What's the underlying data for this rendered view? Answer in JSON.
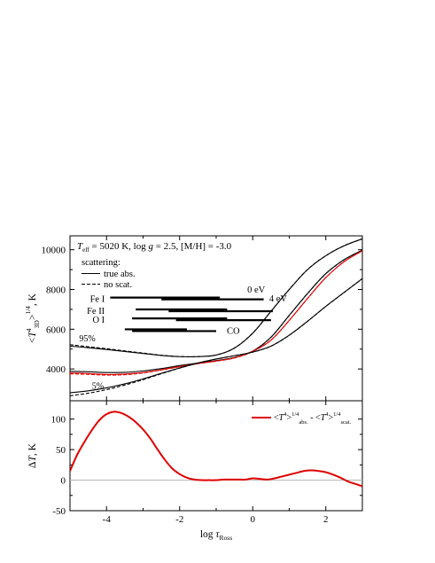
{
  "chart_data": [
    {
      "type": "line",
      "annotation": {
        "teff_prefix": "T",
        "teff_sub": "eff",
        "teff_rest": " = 5020 K, log ",
        "logg_var": "g",
        "logg_rest": " = 2.5, [M/H] = -3.0"
      },
      "ylabel": {
        "open": "<",
        "var": "T",
        "sup": "4",
        "sub": "3D",
        "close": ">",
        "power": "1/4",
        "unit": ", K"
      },
      "xlim": [
        -5,
        3
      ],
      "ylim": [
        2400,
        10700
      ],
      "yticks": [
        4000,
        6000,
        8000,
        10000
      ],
      "ytick_labels": [
        "4000",
        "6000",
        "8000",
        "10000"
      ],
      "xticks": [
        -4,
        -2,
        0,
        2
      ],
      "legend": {
        "title": "scattering:",
        "entries": [
          {
            "label": "true abs.",
            "style": "solid"
          },
          {
            "label": "no scat.",
            "style": "dashed"
          }
        ]
      },
      "percentile_labels": [
        {
          "text": "95%",
          "x": -4.75,
          "y": 5380
        },
        {
          "text": "5%",
          "x": -4.4,
          "y": 3000
        }
      ],
      "series": [
        {
          "name": "95%",
          "kind": "percentile",
          "style": "solid",
          "color": "#000000",
          "x": [
            -5,
            -4.5,
            -4,
            -3.5,
            -3,
            -2.5,
            -2,
            -1.5,
            -1,
            -0.5,
            0,
            0.5,
            1,
            1.5,
            2,
            2.5,
            3
          ],
          "y": [
            5150,
            5070,
            4980,
            4880,
            4780,
            4680,
            4620,
            4620,
            4700,
            5050,
            5800,
            6900,
            8000,
            9000,
            9700,
            10200,
            10550
          ]
        },
        {
          "name": "95%",
          "kind": "percentile",
          "style": "dashed",
          "color": "#000000",
          "x": [
            -5,
            -4.5,
            -4,
            -3.5,
            -3,
            -2.5,
            -2,
            -1.5,
            -1,
            -0.5,
            0,
            0.5,
            1,
            1.5,
            2,
            2.5,
            3
          ],
          "y": [
            5220,
            5120,
            5020,
            4910,
            4800,
            4690,
            4625,
            4620,
            4705,
            5055,
            5805,
            6905,
            8005,
            9005,
            9700,
            10200,
            10550
          ]
        },
        {
          "name": "mean",
          "kind": "mean",
          "style": "solid",
          "color": "#000000",
          "x": [
            -5,
            -4.5,
            -4,
            -3.5,
            -3,
            -2.5,
            -2,
            -1.5,
            -1,
            -0.5,
            0,
            0.5,
            1,
            1.5,
            2,
            2.5,
            3
          ],
          "y": [
            3880,
            3860,
            3820,
            3830,
            3900,
            4020,
            4170,
            4300,
            4420,
            4580,
            4900,
            5600,
            6700,
            7800,
            8800,
            9500,
            9980
          ]
        },
        {
          "name": "mean",
          "kind": "mean",
          "style": "dashed",
          "color": "#000000",
          "x": [
            -5,
            -4.5,
            -4,
            -3.5,
            -3,
            -2.5,
            -2,
            -1.5,
            -1,
            -0.5,
            0,
            0.5,
            1,
            1.5,
            2,
            2.5,
            3
          ],
          "y": [
            3780,
            3740,
            3710,
            3730,
            3810,
            3950,
            4120,
            4270,
            4400,
            4560,
            4890,
            5595,
            6695,
            7795,
            8795,
            9495,
            9975
          ]
        },
        {
          "name": "mean",
          "kind": "mean",
          "style": "solid",
          "color": "#e00000",
          "x": [
            -5,
            -4.5,
            -4,
            -3.5,
            -3,
            -2.5,
            -2,
            -1.5,
            -1,
            -0.5,
            0,
            0.5,
            1,
            1.5,
            2,
            2.5,
            3
          ],
          "y": [
            3800,
            3770,
            3720,
            3740,
            3820,
            3960,
            4120,
            4270,
            4400,
            4560,
            4890,
            5450,
            6450,
            7550,
            8600,
            9400,
            9950
          ]
        },
        {
          "name": "mean",
          "kind": "mean",
          "style": "dashed",
          "color": "#e00000",
          "x": [
            -5,
            -4.5,
            -4,
            -3.5,
            -3,
            -2.5,
            -2,
            -1.5,
            -1,
            -0.5,
            0,
            0.5,
            1,
            1.5,
            2,
            2.5,
            3
          ],
          "y": [
            3760,
            3730,
            3690,
            3710,
            3800,
            3950,
            4110,
            4265,
            4395,
            4555,
            4885,
            5445,
            6445,
            7545,
            8595,
            9395,
            9945
          ]
        },
        {
          "name": "5%",
          "kind": "percentile",
          "style": "solid",
          "color": "#000000",
          "x": [
            -5,
            -4.5,
            -4,
            -3.5,
            -3,
            -2.5,
            -2,
            -1.5,
            -1,
            -0.5,
            0,
            0.5,
            1,
            1.5,
            2,
            2.5,
            3
          ],
          "y": [
            2800,
            2900,
            3050,
            3250,
            3500,
            3780,
            4050,
            4300,
            4500,
            4670,
            4850,
            5150,
            5700,
            6400,
            7150,
            7850,
            8550
          ]
        },
        {
          "name": "5%",
          "kind": "percentile",
          "style": "dashed",
          "color": "#000000",
          "x": [
            -5,
            -4.5,
            -4,
            -3.5,
            -3,
            -2.5,
            -2,
            -1.5,
            -1,
            -0.5,
            0,
            0.5,
            1,
            1.5,
            2,
            2.5,
            3
          ],
          "y": [
            2650,
            2780,
            2960,
            3190,
            3460,
            3760,
            4040,
            4295,
            4498,
            4668,
            4848,
            5148,
            5698,
            6398,
            7148,
            7848,
            8548
          ]
        }
      ],
      "formation_ranges": [
        {
          "label": "Fe I",
          "y": 7550,
          "bars": [
            [
              -3.9,
              -0.9
            ],
            [
              -2.5,
              0.3
            ]
          ]
        },
        {
          "label": "Fe II",
          "y": 6950,
          "bars": [
            [
              -3.2,
              -0.7
            ],
            [
              -2.3,
              0.55
            ]
          ]
        },
        {
          "label": "O I",
          "y": 6500,
          "bars": [
            [
              -3.3,
              -0.7
            ],
            [
              -2.1,
              0.5
            ]
          ]
        },
        {
          "label": "CO",
          "y": 5950,
          "bars": [
            [
              -3.5,
              -1.8
            ],
            [
              -3.3,
              -1.0
            ]
          ]
        }
      ],
      "bar_annotations": [
        {
          "text": "0 eV",
          "x": -0.15,
          "y": 7850
        },
        {
          "text": "4 eV",
          "x": 0.45,
          "y": 7400
        }
      ]
    },
    {
      "type": "line",
      "xlabel": {
        "main": "log ",
        "var": "τ",
        "sub": "Ross"
      },
      "ylabel": {
        "delta": "Δ",
        "var": "T",
        "unit": ", K"
      },
      "xlim": [
        -5,
        3
      ],
      "ylim": [
        -50,
        130
      ],
      "yticks": [
        -50,
        0,
        50,
        100
      ],
      "ytick_labels": [
        "-50",
        "0",
        "50",
        "100"
      ],
      "xticks": [
        -4,
        -2,
        0,
        2
      ],
      "xtick_labels": [
        "-4",
        "-2",
        "0",
        "2"
      ],
      "zero_line": true,
      "legend": {
        "entries": [
          {
            "open": "<",
            "var": "T",
            "sup": "4",
            "close": ">",
            "power": "1/4",
            "sub": "abs.",
            "minus": " - <",
            "var2": "T",
            "sup2": "4",
            "close2": ">",
            "power2": "1/4",
            "sub2": "scat."
          }
        ]
      },
      "series": [
        {
          "name": "diff",
          "color": "#e00000",
          "x": [
            -5,
            -4.8,
            -4.6,
            -4.4,
            -4.2,
            -4.0,
            -3.8,
            -3.6,
            -3.4,
            -3.2,
            -3.0,
            -2.8,
            -2.6,
            -2.4,
            -2.2,
            -2.0,
            -1.8,
            -1.6,
            -1.4,
            -1.2,
            -1.0,
            -0.8,
            -0.6,
            -0.4,
            -0.2,
            0.0,
            0.2,
            0.4,
            0.6,
            0.8,
            1.0,
            1.2,
            1.4,
            1.6,
            1.8,
            2.0,
            2.2,
            2.4,
            2.6,
            2.8,
            3.0
          ],
          "y": [
            15,
            42,
            63,
            82,
            98,
            108,
            112,
            110,
            104,
            95,
            83,
            68,
            50,
            33,
            19,
            10,
            4,
            1,
            0,
            0,
            0,
            1,
            1,
            1,
            1,
            3,
            2,
            1,
            3,
            6,
            9,
            12,
            15,
            16,
            15,
            13,
            9,
            4,
            -2,
            -6,
            -10
          ]
        }
      ]
    }
  ]
}
